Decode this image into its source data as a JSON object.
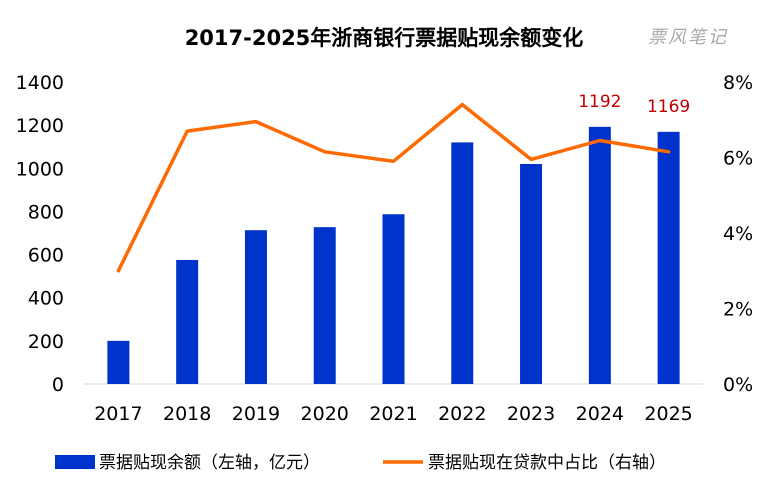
{
  "chart_data": {
    "type": "bar+line",
    "title": "2017-2025年浙商银行票据贴现余额变化",
    "watermark": "票风笔记",
    "categories": [
      "2017",
      "2018",
      "2019",
      "2020",
      "2021",
      "2022",
      "2023",
      "2024",
      "2025"
    ],
    "series": [
      {
        "name": "票据贴现余额（左轴，亿元）",
        "type": "bar",
        "axis": "left",
        "color": "#0033cc",
        "values": [
          200,
          575,
          713,
          727,
          787,
          1120,
          1020,
          1192,
          1169
        ]
      },
      {
        "name": "票据贴现在贷款中占比（右轴）",
        "type": "line",
        "axis": "right",
        "color": "#ff6a00",
        "values": [
          3.0,
          6.7,
          6.95,
          6.15,
          5.9,
          7.4,
          5.95,
          6.45,
          6.15
        ]
      }
    ],
    "data_labels": [
      {
        "category": "2024",
        "text": "1192"
      },
      {
        "category": "2025",
        "text": "1169"
      }
    ],
    "y_left": {
      "min": 0,
      "max": 1400,
      "ticks": [
        "0",
        "200",
        "400",
        "600",
        "800",
        "1000",
        "1200",
        "1400"
      ]
    },
    "y_right": {
      "min": 0,
      "max": 8,
      "ticks": [
        "0%",
        "2%",
        "4%",
        "6%",
        "8%"
      ]
    },
    "grid": false,
    "legend_position": "bottom"
  }
}
